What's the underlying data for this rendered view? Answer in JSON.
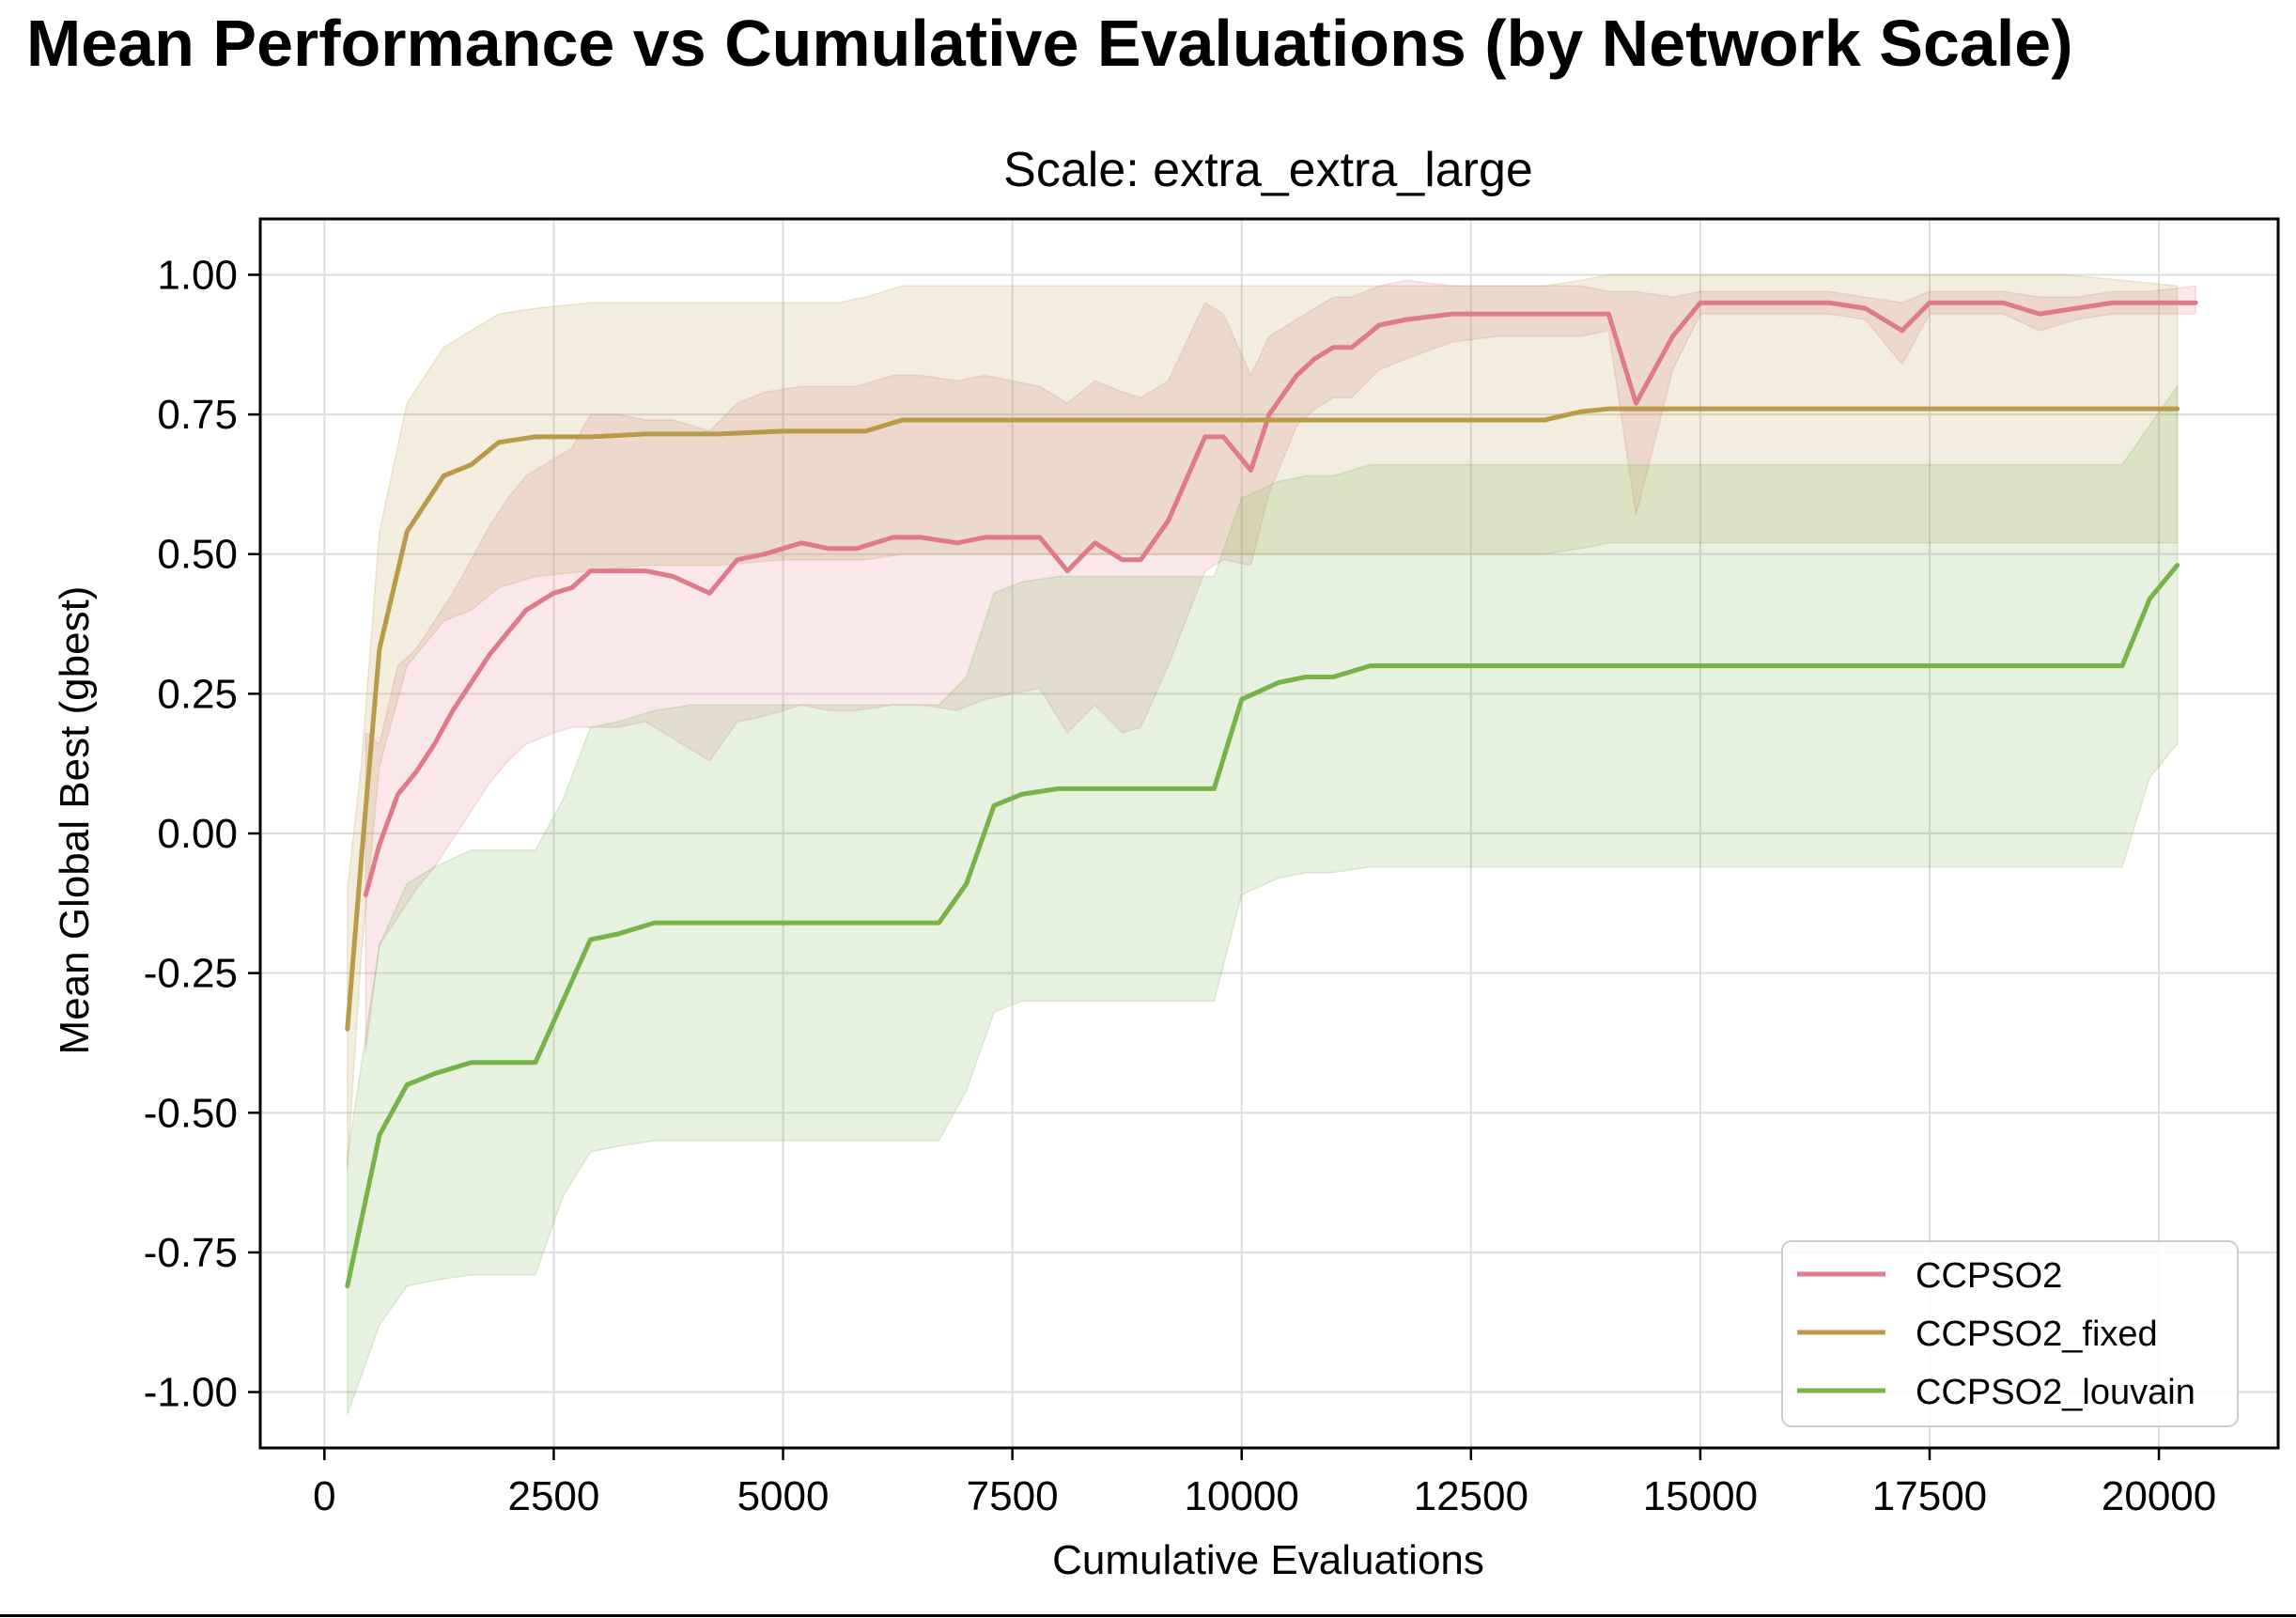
{
  "figure": {
    "suptitle": "Mean Performance vs Cumulative Evaluations (by Network Scale)"
  },
  "chart_data": {
    "type": "line",
    "title": "Scale: extra_extra_large",
    "xlabel": "Cumulative Evaluations",
    "ylabel": "Mean Global Best (gbest)",
    "xlim": [
      -700,
      21300
    ],
    "ylim": [
      -1.1,
      1.1
    ],
    "xticks": [
      0,
      2500,
      5000,
      7500,
      10000,
      12500,
      15000,
      17500,
      20000
    ],
    "xtick_labels": [
      "0",
      "2500",
      "5000",
      "7500",
      "10000",
      "12500",
      "15000",
      "17500",
      "20000"
    ],
    "yticks": [
      1.0,
      0.75,
      0.5,
      0.25,
      0.0,
      -0.25,
      -0.5,
      -0.75,
      -1.0
    ],
    "ytick_labels": [
      "1.00",
      "0.75",
      "0.50",
      "0.25",
      "0.00",
      "-0.25",
      "-0.50",
      "-0.75",
      "-1.00"
    ],
    "grid": true,
    "legend": {
      "position": "lower right",
      "entries": [
        "CCPSO2",
        "CCPSO2_fixed",
        "CCPSO2_louvain"
      ]
    },
    "shaded_band": "mean ± spread",
    "series": [
      {
        "name": "CCPSO2",
        "color": "#df7a8a",
        "x": [
          450,
          600,
          800,
          1000,
          1200,
          1400,
          1600,
          1800,
          2000,
          2200,
          2500,
          2700,
          2900,
          3200,
          3500,
          3800,
          4200,
          4500,
          4800,
          5200,
          5500,
          5800,
          6200,
          6500,
          6900,
          7200,
          7800,
          8100,
          8400,
          8700,
          8900,
          9200,
          9600,
          9800,
          10100,
          10300,
          10600,
          10800,
          11000,
          11200,
          11500,
          11800,
          12300,
          12800,
          13400,
          13700,
          14000,
          14300,
          14700,
          15000,
          15400,
          15800,
          16400,
          16800,
          17200,
          17500,
          17800,
          18300,
          18700,
          19100,
          19500,
          19900,
          20400
        ],
        "y": [
          -0.11,
          -0.02,
          0.07,
          0.11,
          0.16,
          0.22,
          0.27,
          0.32,
          0.36,
          0.4,
          0.43,
          0.44,
          0.47,
          0.47,
          0.47,
          0.46,
          0.43,
          0.49,
          0.5,
          0.52,
          0.51,
          0.51,
          0.53,
          0.53,
          0.52,
          0.53,
          0.53,
          0.47,
          0.52,
          0.49,
          0.49,
          0.56,
          0.71,
          0.71,
          0.65,
          0.75,
          0.82,
          0.85,
          0.87,
          0.87,
          0.91,
          0.92,
          0.93,
          0.93,
          0.93,
          0.93,
          0.93,
          0.77,
          0.89,
          0.95,
          0.95,
          0.95,
          0.95,
          0.94,
          0.9,
          0.95,
          0.95,
          0.95,
          0.93,
          0.94,
          0.95,
          0.95,
          0.95
        ],
        "lower": [
          -0.39,
          -0.2,
          -0.15,
          -0.1,
          -0.06,
          -0.01,
          0.04,
          0.09,
          0.13,
          0.16,
          0.18,
          0.19,
          0.19,
          0.19,
          0.2,
          0.17,
          0.13,
          0.2,
          0.21,
          0.23,
          0.22,
          0.22,
          0.23,
          0.23,
          0.22,
          0.24,
          0.26,
          0.18,
          0.23,
          0.18,
          0.19,
          0.3,
          0.47,
          0.49,
          0.48,
          0.61,
          0.73,
          0.76,
          0.78,
          0.78,
          0.83,
          0.85,
          0.88,
          0.89,
          0.89,
          0.89,
          0.9,
          0.57,
          0.83,
          0.93,
          0.93,
          0.93,
          0.93,
          0.92,
          0.84,
          0.93,
          0.93,
          0.93,
          0.9,
          0.92,
          0.93,
          0.93,
          0.93
        ],
        "upper": [
          0.18,
          0.16,
          0.3,
          0.33,
          0.38,
          0.43,
          0.49,
          0.55,
          0.6,
          0.64,
          0.67,
          0.69,
          0.75,
          0.75,
          0.74,
          0.74,
          0.72,
          0.77,
          0.79,
          0.8,
          0.8,
          0.8,
          0.82,
          0.82,
          0.81,
          0.82,
          0.8,
          0.77,
          0.81,
          0.79,
          0.78,
          0.81,
          0.95,
          0.93,
          0.82,
          0.89,
          0.92,
          0.94,
          0.96,
          0.96,
          0.98,
          0.99,
          0.98,
          0.98,
          0.98,
          0.98,
          0.97,
          0.97,
          0.96,
          0.97,
          0.97,
          0.97,
          0.97,
          0.96,
          0.95,
          0.97,
          0.97,
          0.97,
          0.96,
          0.96,
          0.97,
          0.97,
          0.98
        ]
      },
      {
        "name": "CCPSO2_fixed",
        "color": "#b89a4a",
        "x": [
          250,
          400,
          600,
          900,
          1300,
          1600,
          1900,
          2300,
          2900,
          3500,
          4300,
          5000,
          5600,
          5900,
          6300,
          7000,
          8000,
          9000,
          10000,
          11000,
          12000,
          13000,
          13300,
          13700,
          14000,
          15000,
          16000,
          17000,
          18000,
          19000,
          20200
        ],
        "y": [
          -0.35,
          -0.05,
          0.33,
          0.54,
          0.64,
          0.66,
          0.7,
          0.71,
          0.71,
          0.715,
          0.715,
          0.72,
          0.72,
          0.72,
          0.74,
          0.74,
          0.74,
          0.74,
          0.74,
          0.74,
          0.74,
          0.74,
          0.74,
          0.755,
          0.76,
          0.76,
          0.76,
          0.76,
          0.76,
          0.76,
          0.76
        ],
        "lower": [
          -0.6,
          -0.22,
          0.12,
          0.3,
          0.38,
          0.4,
          0.44,
          0.46,
          0.47,
          0.48,
          0.48,
          0.49,
          0.49,
          0.49,
          0.5,
          0.5,
          0.5,
          0.5,
          0.5,
          0.5,
          0.5,
          0.5,
          0.5,
          0.51,
          0.52,
          0.52,
          0.52,
          0.52,
          0.52,
          0.52,
          0.52
        ],
        "upper": [
          -0.1,
          0.12,
          0.54,
          0.77,
          0.87,
          0.9,
          0.93,
          0.94,
          0.95,
          0.95,
          0.95,
          0.95,
          0.95,
          0.96,
          0.98,
          0.98,
          0.98,
          0.98,
          0.98,
          0.98,
          0.98,
          0.98,
          0.98,
          0.99,
          1.0,
          1.0,
          1.0,
          1.0,
          1.0,
          1.0,
          0.98
        ]
      },
      {
        "name": "CCPSO2_louvain",
        "color": "#78b24b",
        "x": [
          250,
          600,
          900,
          1200,
          1600,
          1900,
          2300,
          2600,
          2900,
          3200,
          3600,
          4000,
          5000,
          6000,
          6700,
          7000,
          7300,
          7600,
          8000,
          8500,
          9000,
          9700,
          10000,
          10400,
          10700,
          11000,
          11400,
          12000,
          13000,
          14000,
          15000,
          16000,
          17000,
          18000,
          19000,
          19600,
          19900,
          20200
        ],
        "y": [
          -0.81,
          -0.54,
          -0.45,
          -0.43,
          -0.41,
          -0.41,
          -0.41,
          -0.3,
          -0.19,
          -0.18,
          -0.16,
          -0.16,
          -0.16,
          -0.16,
          -0.16,
          -0.09,
          0.05,
          0.07,
          0.08,
          0.08,
          0.08,
          0.08,
          0.24,
          0.27,
          0.28,
          0.28,
          0.3,
          0.3,
          0.3,
          0.3,
          0.3,
          0.3,
          0.3,
          0.3,
          0.3,
          0.3,
          0.42,
          0.48
        ],
        "lower": [
          -1.04,
          -0.88,
          -0.81,
          -0.8,
          -0.79,
          -0.79,
          -0.79,
          -0.65,
          -0.57,
          -0.56,
          -0.55,
          -0.55,
          -0.55,
          -0.55,
          -0.55,
          -0.46,
          -0.32,
          -0.3,
          -0.3,
          -0.3,
          -0.3,
          -0.3,
          -0.11,
          -0.08,
          -0.07,
          -0.07,
          -0.06,
          -0.06,
          -0.06,
          -0.06,
          -0.06,
          -0.06,
          -0.06,
          -0.06,
          -0.06,
          -0.06,
          0.1,
          0.16
        ],
        "upper": [
          -0.58,
          -0.2,
          -0.09,
          -0.06,
          -0.03,
          -0.03,
          -0.03,
          0.06,
          0.19,
          0.2,
          0.22,
          0.23,
          0.23,
          0.23,
          0.23,
          0.28,
          0.43,
          0.45,
          0.46,
          0.46,
          0.46,
          0.46,
          0.6,
          0.63,
          0.64,
          0.64,
          0.66,
          0.66,
          0.66,
          0.66,
          0.66,
          0.66,
          0.66,
          0.66,
          0.66,
          0.66,
          0.73,
          0.8
        ]
      }
    ]
  }
}
